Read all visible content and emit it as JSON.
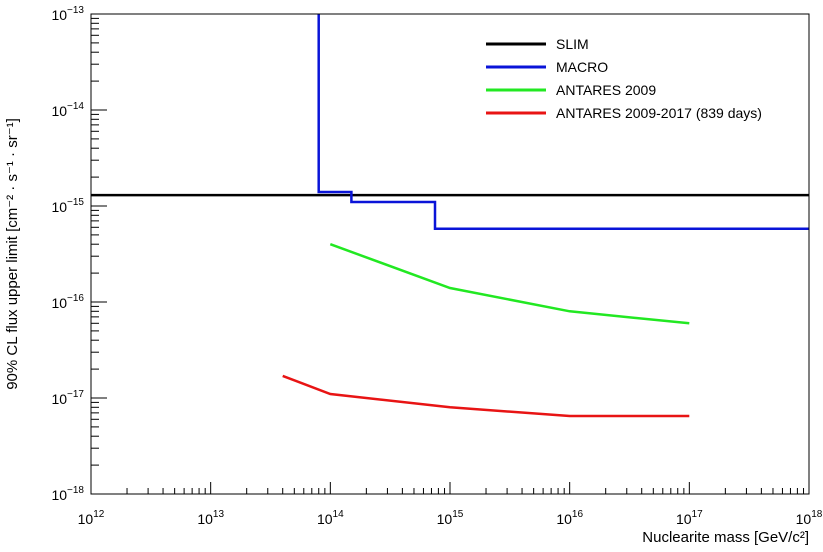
{
  "chart_data": {
    "type": "line",
    "xlabel": "Nuclearite mass [GeV/c²]",
    "ylabel": "90% CL flux upper limit [cm⁻² · s⁻¹ · sr⁻¹]",
    "x_scale": "log",
    "y_scale": "log",
    "xlim": [
      1000000000000.0,
      1e+18
    ],
    "ylim": [
      1e-18,
      1e-13
    ],
    "grid": false,
    "legend_position": "top-right",
    "x_ticks": [
      {
        "base": "10",
        "exp": "12"
      },
      {
        "base": "10",
        "exp": "13"
      },
      {
        "base": "10",
        "exp": "14"
      },
      {
        "base": "10",
        "exp": "15"
      },
      {
        "base": "10",
        "exp": "16"
      },
      {
        "base": "10",
        "exp": "17"
      },
      {
        "base": "10",
        "exp": "18"
      }
    ],
    "y_ticks": [
      {
        "base": "10",
        "exp": "−18"
      },
      {
        "base": "10",
        "exp": "−17"
      },
      {
        "base": "10",
        "exp": "−16"
      },
      {
        "base": "10",
        "exp": "−15"
      },
      {
        "base": "10",
        "exp": "−14"
      },
      {
        "base": "10",
        "exp": "−13"
      }
    ],
    "series": [
      {
        "name": "SLIM",
        "color": "#000000",
        "step": false,
        "x": [
          1000000000000.0,
          1e+18
        ],
        "y": [
          1.3e-15,
          1.3e-15
        ]
      },
      {
        "name": "MACRO",
        "color": "#0a14d8",
        "step": true,
        "x": [
          80000000000000.0,
          80000000000000.0,
          150000000000000.0,
          150000000000000.0,
          750000000000000.0,
          750000000000000.0,
          1e+18
        ],
        "y": [
          1e-13,
          1.4e-15,
          1.4e-15,
          1.1e-15,
          1.1e-15,
          5.8e-16,
          5.8e-16
        ]
      },
      {
        "name": "ANTARES 2009",
        "color": "#22e822",
        "step": false,
        "x": [
          100000000000000.0,
          1000000000000000.0,
          1e+16,
          1e+17
        ],
        "y": [
          4e-16,
          1.4e-16,
          8e-17,
          6e-17
        ]
      },
      {
        "name": "ANTARES 2009-2017 (839 days)",
        "color": "#e81414",
        "step": false,
        "x": [
          40000000000000.0,
          100000000000000.0,
          1000000000000000.0,
          1e+16,
          1e+17
        ],
        "y": [
          1.7e-17,
          1.1e-17,
          8e-18,
          6.5e-18,
          6.5e-18
        ]
      }
    ]
  }
}
